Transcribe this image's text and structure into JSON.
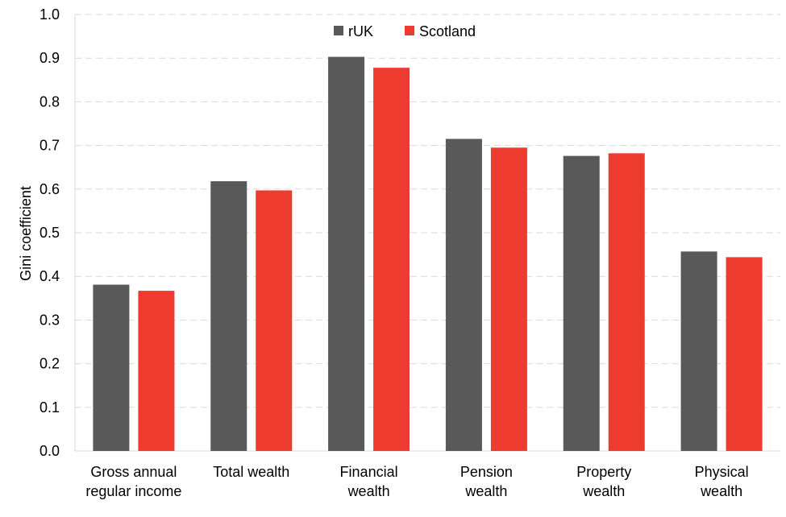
{
  "chart_data": {
    "type": "bar",
    "title": "",
    "xlabel": "",
    "ylabel": "Gini coefficient",
    "ylim": [
      0,
      1.0
    ],
    "yticks": [
      "0.0",
      "0.1",
      "0.2",
      "0.3",
      "0.4",
      "0.5",
      "0.6",
      "0.7",
      "0.8",
      "0.9",
      "1.0"
    ],
    "grid": "horizontal dashed",
    "legend_position": "top-center",
    "categories": [
      [
        "Gross annual",
        "regular income"
      ],
      [
        "Total wealth"
      ],
      [
        "Financial",
        "wealth"
      ],
      [
        "Pension",
        "wealth"
      ],
      [
        "Property",
        "wealth"
      ],
      [
        "Physical",
        "wealth"
      ]
    ],
    "series": [
      {
        "name": "rUK",
        "color": "#595959",
        "values": [
          0.381,
          0.618,
          0.903,
          0.715,
          0.676,
          0.457
        ]
      },
      {
        "name": "Scotland",
        "color": "#EE3B30",
        "values": [
          0.367,
          0.597,
          0.878,
          0.695,
          0.682,
          0.444
        ]
      }
    ]
  }
}
